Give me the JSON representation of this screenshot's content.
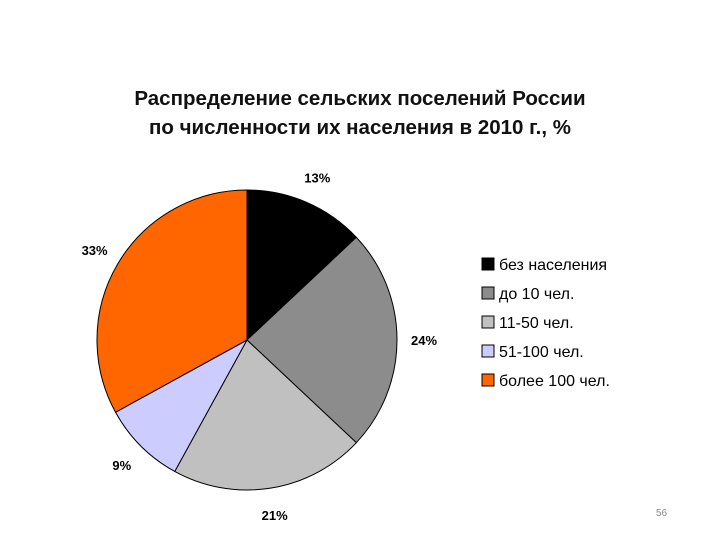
{
  "slide": {
    "title_lines": [
      "Распределение сельских поселений России",
      "по численности их населения в 2010 г., %"
    ],
    "page_number": "56"
  },
  "chart_data": {
    "type": "pie",
    "title": "Распределение сельских поселений России по численности их населения в 2010 г., %",
    "unit": "%",
    "start_angle_deg": 0,
    "direction": "clockwise",
    "legend_position": "right",
    "slices": [
      {
        "label": "без населения",
        "value": 13,
        "value_label": "13%",
        "color": "#000000"
      },
      {
        "label": "до 10 чел.",
        "value": 24,
        "value_label": "24%",
        "color": "#8c8c8c"
      },
      {
        "label": "11-50 чел.",
        "value": 21,
        "value_label": "21%",
        "color": "#c0c0c0"
      },
      {
        "label": "51-100 чел.",
        "value": 9,
        "value_label": "9%",
        "color": "#ccccff"
      },
      {
        "label": "более 100 чел.",
        "value": 33,
        "value_label": "33%",
        "color": "#ff6600"
      }
    ]
  }
}
